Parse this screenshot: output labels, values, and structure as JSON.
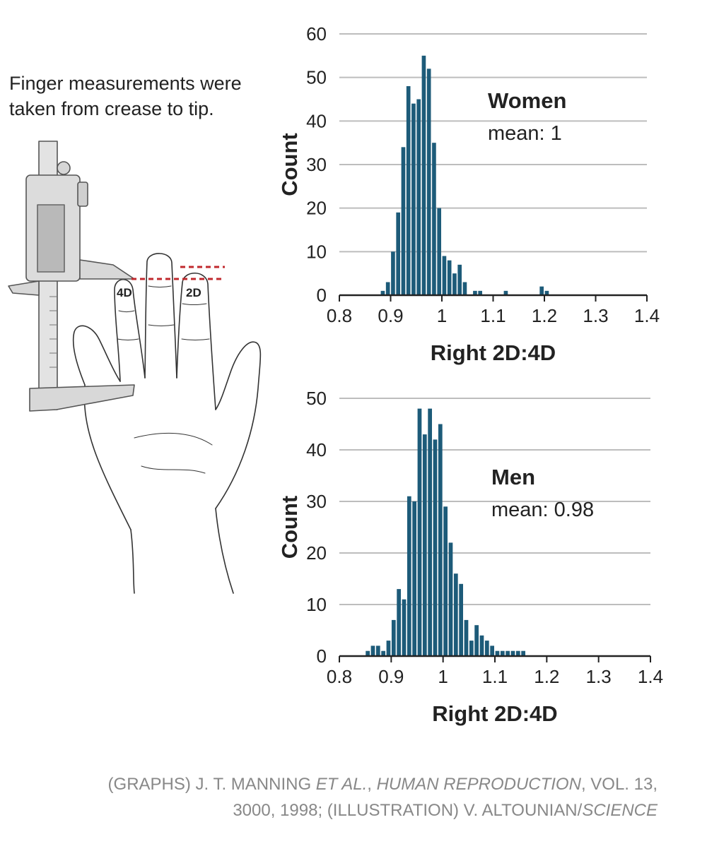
{
  "caption": "Finger measurements were taken from crease to tip.",
  "illustration": {
    "label_4d": "4D",
    "label_2d": "2D"
  },
  "colors": {
    "bar": "#1d5b79",
    "grid": "#bdbdbd",
    "axis": "#222222",
    "text": "#222222",
    "credit": "#888888",
    "dashed": "#c0282d"
  },
  "credit": {
    "p1": "(GRAPHS) J. T. MANNING ",
    "p2": "ET AL.",
    "p3": ", ",
    "p4": "HUMAN REPRODUCTION",
    "p5": ", VOL. 13,",
    "p6": "3000, 1998; (ILLUSTRATION) V. ALTOUNIAN/",
    "p7": "SCIENCE"
  },
  "chart_data": [
    {
      "type": "bar",
      "subtype": "histogram",
      "group": "Women",
      "annotation": "mean: 1",
      "xlabel": "Right 2D:4D",
      "ylabel": "Count",
      "xlim": [
        0.8,
        1.4
      ],
      "ylim": [
        0,
        60
      ],
      "xticks": [
        "0.8",
        "0.9",
        "1",
        "1.1",
        "1.2",
        "1.3",
        "1.4"
      ],
      "yticks": [
        "0",
        "10",
        "20",
        "30",
        "40",
        "50",
        "60"
      ],
      "bin_width": 0.01,
      "grid": true,
      "bins": [
        [
          0.88,
          1
        ],
        [
          0.89,
          3
        ],
        [
          0.9,
          10
        ],
        [
          0.91,
          19
        ],
        [
          0.92,
          34
        ],
        [
          0.93,
          48
        ],
        [
          0.94,
          44
        ],
        [
          0.95,
          45
        ],
        [
          0.96,
          55
        ],
        [
          0.97,
          52
        ],
        [
          0.98,
          35
        ],
        [
          0.99,
          20
        ],
        [
          1.0,
          9
        ],
        [
          1.01,
          8
        ],
        [
          1.02,
          5
        ],
        [
          1.03,
          7
        ],
        [
          1.04,
          3
        ],
        [
          1.06,
          1
        ],
        [
          1.07,
          1
        ],
        [
          1.12,
          1
        ],
        [
          1.19,
          2
        ],
        [
          1.2,
          1
        ]
      ]
    },
    {
      "type": "bar",
      "subtype": "histogram",
      "group": "Men",
      "annotation": "mean: 0.98",
      "xlabel": "Right 2D:4D",
      "ylabel": "Count",
      "xlim": [
        0.8,
        1.4
      ],
      "ylim": [
        0,
        50
      ],
      "xticks": [
        "0.8",
        "0.9",
        "1",
        "1.1",
        "1.2",
        "1.3",
        "1.4"
      ],
      "yticks": [
        "0",
        "10",
        "20",
        "30",
        "40",
        "50"
      ],
      "bin_width": 0.01,
      "grid": true,
      "bins": [
        [
          0.85,
          1
        ],
        [
          0.86,
          2
        ],
        [
          0.87,
          2
        ],
        [
          0.88,
          1
        ],
        [
          0.89,
          3
        ],
        [
          0.9,
          7
        ],
        [
          0.91,
          13
        ],
        [
          0.92,
          11
        ],
        [
          0.93,
          31
        ],
        [
          0.94,
          30
        ],
        [
          0.95,
          48
        ],
        [
          0.96,
          43
        ],
        [
          0.97,
          48
        ],
        [
          0.98,
          42
        ],
        [
          0.99,
          45
        ],
        [
          1.0,
          29
        ],
        [
          1.01,
          22
        ],
        [
          1.02,
          16
        ],
        [
          1.03,
          14
        ],
        [
          1.04,
          7
        ],
        [
          1.05,
          3
        ],
        [
          1.06,
          6
        ],
        [
          1.07,
          4
        ],
        [
          1.08,
          3
        ],
        [
          1.09,
          2
        ],
        [
          1.1,
          1
        ],
        [
          1.11,
          1
        ],
        [
          1.12,
          1
        ],
        [
          1.13,
          1
        ],
        [
          1.14,
          1
        ],
        [
          1.15,
          1
        ]
      ]
    }
  ]
}
